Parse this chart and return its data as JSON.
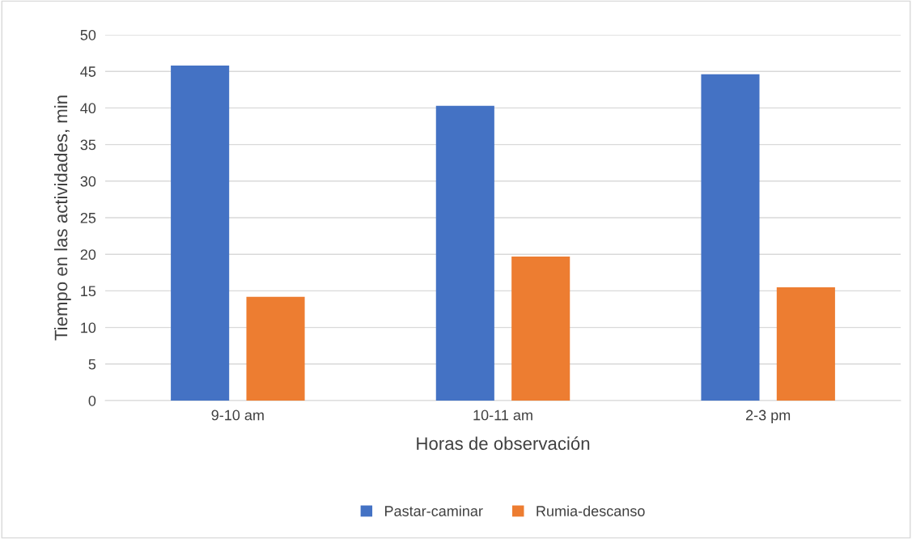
{
  "chart_data": {
    "type": "bar",
    "xlabel": "Horas de observación",
    "ylabel": "Tiempo en las actividades, min",
    "categories": [
      "9-10 am",
      "10-11 am",
      "2-3 pm"
    ],
    "series": [
      {
        "name": "Pastar-caminar",
        "color": "#4472c4",
        "values": [
          45.8,
          40.3,
          44.6
        ]
      },
      {
        "name": "Rumia-descanso",
        "color": "#ed7d31",
        "values": [
          14.2,
          19.7,
          15.5
        ]
      }
    ],
    "ylim": [
      0,
      50
    ],
    "yticks": [
      0,
      5,
      10,
      15,
      20,
      25,
      30,
      35,
      40,
      45,
      50
    ],
    "grid": "y",
    "legend": "bottom"
  }
}
